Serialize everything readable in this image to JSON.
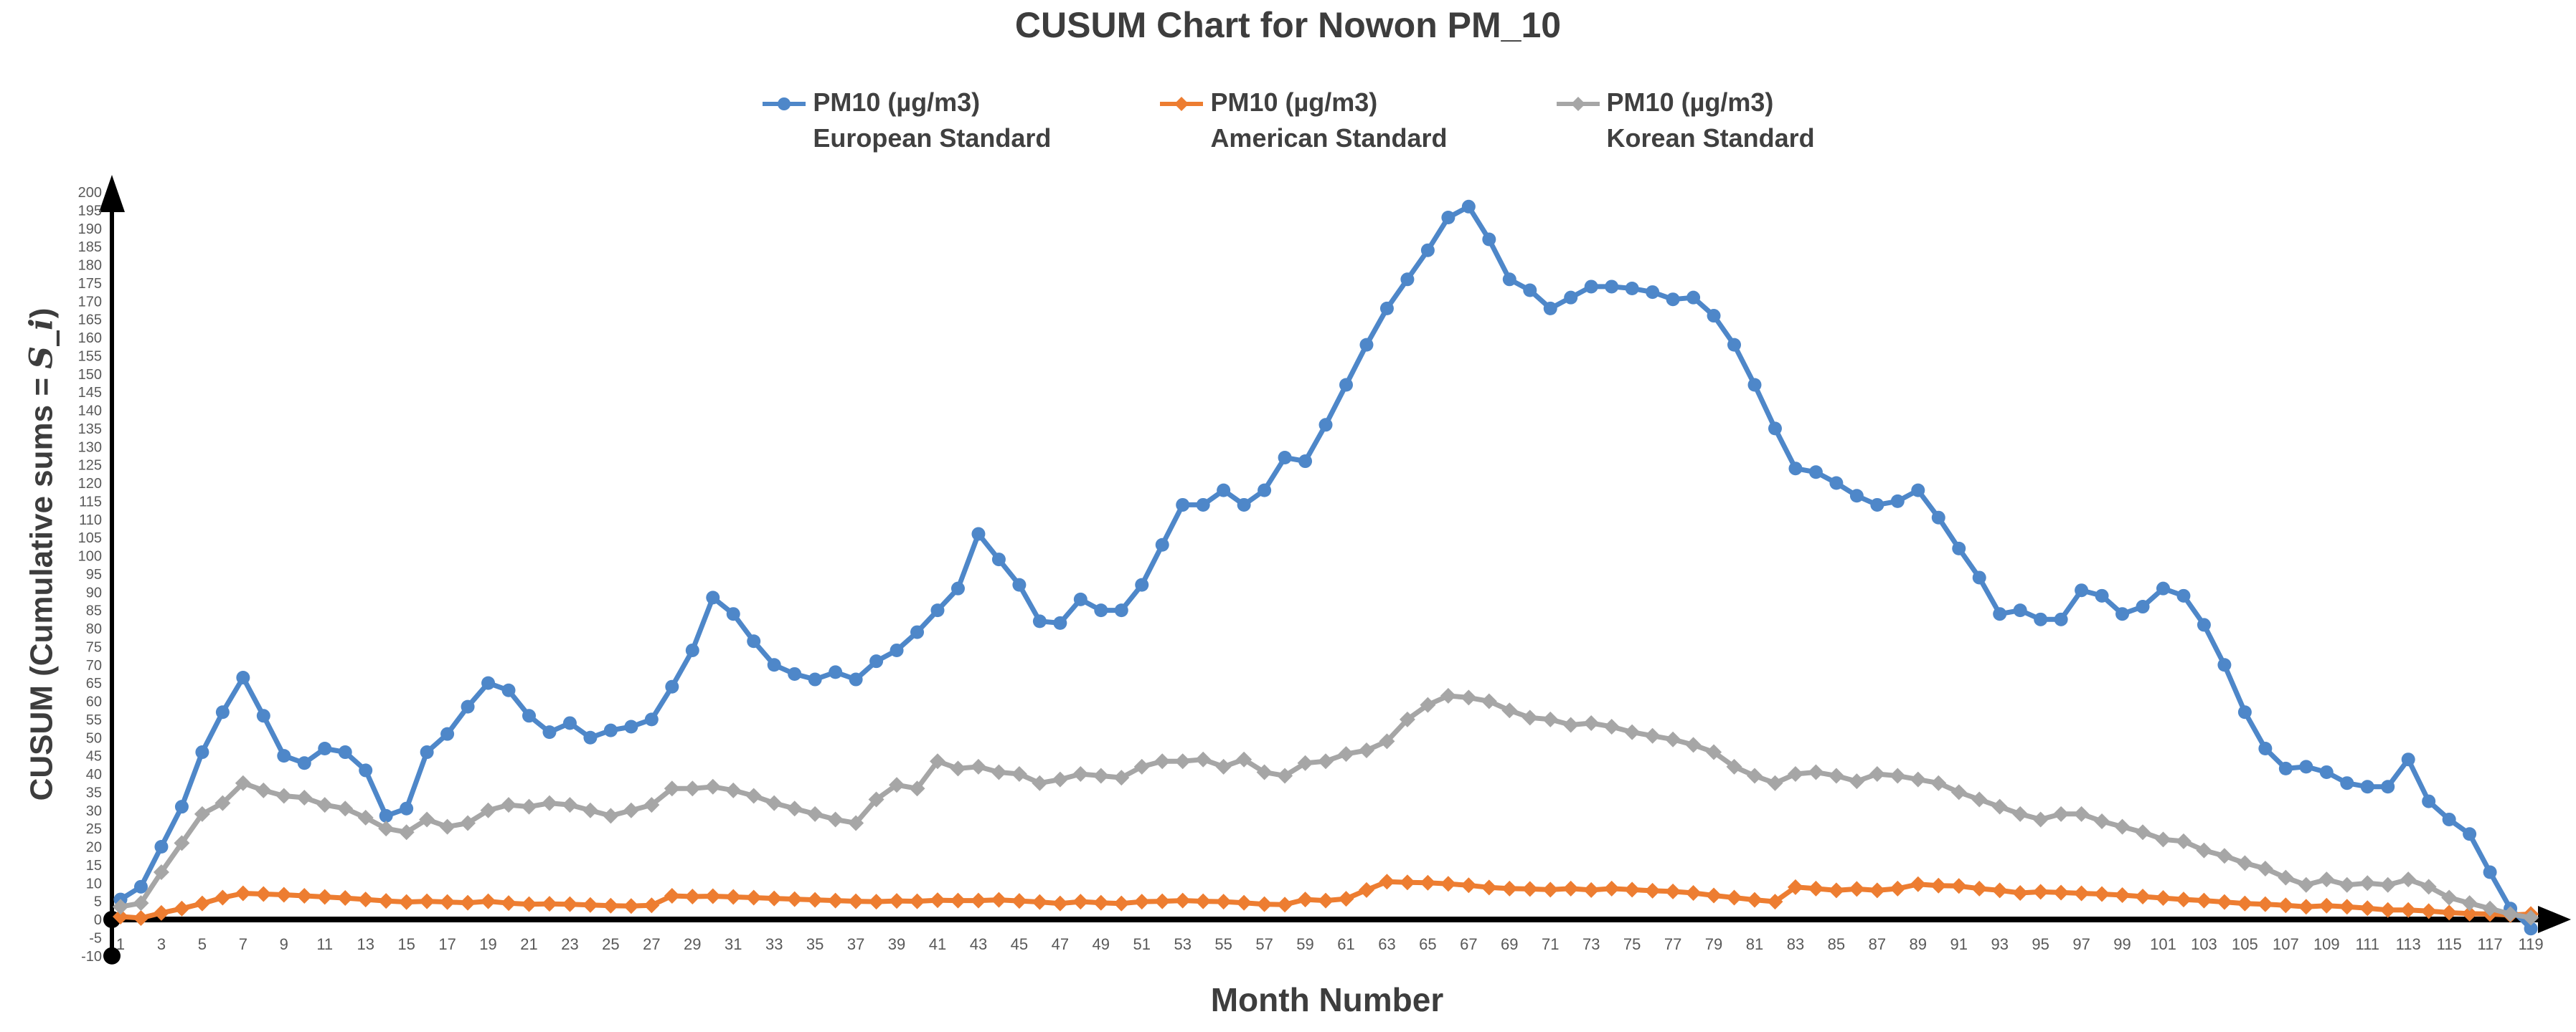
{
  "title": "CUSUM Chart for Nowon PM_10",
  "x_axis": {
    "title": "Month Number"
  },
  "y_axis": {
    "title_prefix": "CUSUM (Cumulative sums = ",
    "title_math": "S_i",
    "title_suffix": ")"
  },
  "colors": {
    "european": "#4E87C9",
    "american": "#ED7D31",
    "korean": "#A6A6A6",
    "axis": "#000000",
    "tick_label": "#595959",
    "heading": "#3d3d3d",
    "legend_text": "#404040"
  },
  "chart_data": {
    "type": "line",
    "x_range": [
      1,
      119
    ],
    "ylim": [
      -10,
      200
    ],
    "ytick_step": 5,
    "grid": false,
    "legend_position": "top",
    "xtick_labels": [
      1,
      3,
      5,
      7,
      9,
      11,
      13,
      15,
      17,
      19,
      21,
      23,
      25,
      27,
      29,
      31,
      33,
      35,
      37,
      39,
      41,
      43,
      45,
      47,
      49,
      51,
      53,
      55,
      57,
      59,
      61,
      63,
      65,
      67,
      69,
      71,
      73,
      75,
      77,
      79,
      81,
      83,
      85,
      87,
      89,
      91,
      93,
      95,
      97,
      99,
      101,
      103,
      105,
      107,
      109,
      111,
      113,
      115,
      117,
      119
    ],
    "ytick_labels": [
      200,
      195,
      190,
      185,
      180,
      175,
      170,
      165,
      160,
      155,
      150,
      145,
      140,
      135,
      130,
      125,
      120,
      115,
      110,
      105,
      100,
      95,
      90,
      85,
      80,
      75,
      70,
      65,
      60,
      55,
      50,
      45,
      40,
      35,
      30,
      25,
      20,
      15,
      10,
      5,
      0,
      -5,
      -10
    ],
    "series": [
      {
        "key": "european-standard",
        "label_line1": "PM10 (µg/m3)",
        "label_line2": "European Standard",
        "color": "#4E87C9",
        "marker": "circle",
        "values": [
          5.5,
          9,
          20,
          31,
          46,
          57,
          66.5,
          56,
          45,
          43,
          47,
          46,
          41,
          28.5,
          30.5,
          46,
          51,
          58.5,
          65,
          63,
          56,
          51.5,
          54,
          50,
          52,
          53,
          55,
          64,
          74,
          88.5,
          84,
          76.5,
          70,
          67.5,
          66,
          68,
          66,
          71,
          74,
          79,
          85,
          91,
          106,
          99,
          92,
          82,
          81.5,
          88,
          85,
          85,
          92,
          103,
          114,
          114,
          118,
          114,
          118,
          127,
          126,
          136,
          147,
          158,
          168,
          176,
          184,
          193,
          196,
          187,
          176,
          173,
          168,
          171,
          174,
          174,
          173.5,
          172.5,
          170.5,
          171,
          166,
          158,
          147,
          135,
          124,
          123,
          120,
          116.5,
          114,
          115,
          118,
          110.5,
          102,
          94,
          84,
          85,
          82.5,
          82.5,
          90.5,
          89,
          84,
          86,
          91,
          89,
          81,
          70,
          57,
          47,
          41.5,
          42,
          40.5,
          37.5,
          36.5,
          36.5,
          44,
          32.5,
          27.5,
          23.5,
          13,
          3,
          -2.5
        ]
      },
      {
        "key": "american-standard",
        "label_line1": "PM10 (µg/m3)",
        "label_line2": "American Standard",
        "color": "#ED7D31",
        "marker": "diamond",
        "values": [
          0.8,
          0.4,
          1.8,
          3,
          4.4,
          6,
          7.2,
          7,
          6.8,
          6.5,
          6.2,
          5.9,
          5.5,
          5.1,
          4.8,
          5,
          4.8,
          4.6,
          5,
          4.5,
          4.2,
          4.3,
          4.2,
          4,
          3.8,
          3.7,
          3.9,
          6.5,
          6.3,
          6.4,
          6.2,
          6,
          5.8,
          5.6,
          5.4,
          5.2,
          5,
          4.9,
          5.1,
          5,
          5.3,
          5.2,
          5.2,
          5.4,
          5.1,
          4.8,
          4.4,
          4.9,
          4.6,
          4.4,
          4.9,
          5,
          5.2,
          5,
          4.9,
          4.6,
          4.2,
          4.1,
          5.5,
          5.2,
          5.7,
          8.1,
          10.4,
          10.2,
          10.1,
          9.8,
          9.4,
          8.8,
          8.5,
          8.4,
          8.2,
          8.5,
          8.1,
          8.5,
          8.2,
          7.9,
          7.7,
          7.3,
          6.6,
          6,
          5.4,
          4.9,
          8.9,
          8.5,
          8,
          8.4,
          8,
          8.5,
          9.7,
          9.3,
          9.2,
          8.5,
          8,
          7.3,
          7.6,
          7.4,
          7.2,
          7,
          6.7,
          6.3,
          5.9,
          5.5,
          5.2,
          4.8,
          4.4,
          4.2,
          3.9,
          3.5,
          3.8,
          3.5,
          3.1,
          2.6,
          2.6,
          2.3,
          1.9,
          1.6,
          1.5,
          1.2,
          1.5
        ]
      },
      {
        "key": "korean-standard",
        "label_line1": "PM10 (µg/m3)",
        "label_line2": "Korean Standard",
        "color": "#A6A6A6",
        "marker": "diamond",
        "values": [
          3.5,
          4.5,
          13,
          21,
          29,
          32,
          37.5,
          35.5,
          34,
          33.5,
          31.5,
          30.5,
          28,
          25,
          24,
          27.5,
          25.5,
          26.5,
          30,
          31.5,
          31,
          32,
          31.5,
          30,
          28.5,
          30,
          31.5,
          36,
          36,
          36.5,
          35.5,
          34,
          32,
          30.5,
          29,
          27.5,
          26.5,
          33,
          37,
          36,
          43.5,
          41.5,
          42,
          40.5,
          40,
          37.5,
          38.5,
          40,
          39.5,
          39,
          42,
          43.5,
          43.5,
          44,
          42,
          44,
          40.5,
          39.5,
          43,
          43.5,
          45.5,
          46.5,
          49,
          55,
          59,
          61.5,
          61,
          60,
          57.5,
          55.5,
          55,
          53.5,
          54,
          53,
          51.5,
          50.5,
          49.5,
          48,
          46,
          42,
          39.5,
          37.5,
          40,
          40.5,
          39.5,
          38,
          40,
          39.5,
          38.5,
          37.5,
          35,
          33,
          31,
          29,
          27.5,
          29,
          29,
          27,
          25.5,
          24,
          22,
          21.5,
          19,
          17.5,
          15.5,
          14,
          11.5,
          9.5,
          11,
          9.5,
          10,
          9.5,
          11,
          9,
          6,
          4.5,
          3,
          1.5,
          0.5
        ]
      }
    ]
  }
}
